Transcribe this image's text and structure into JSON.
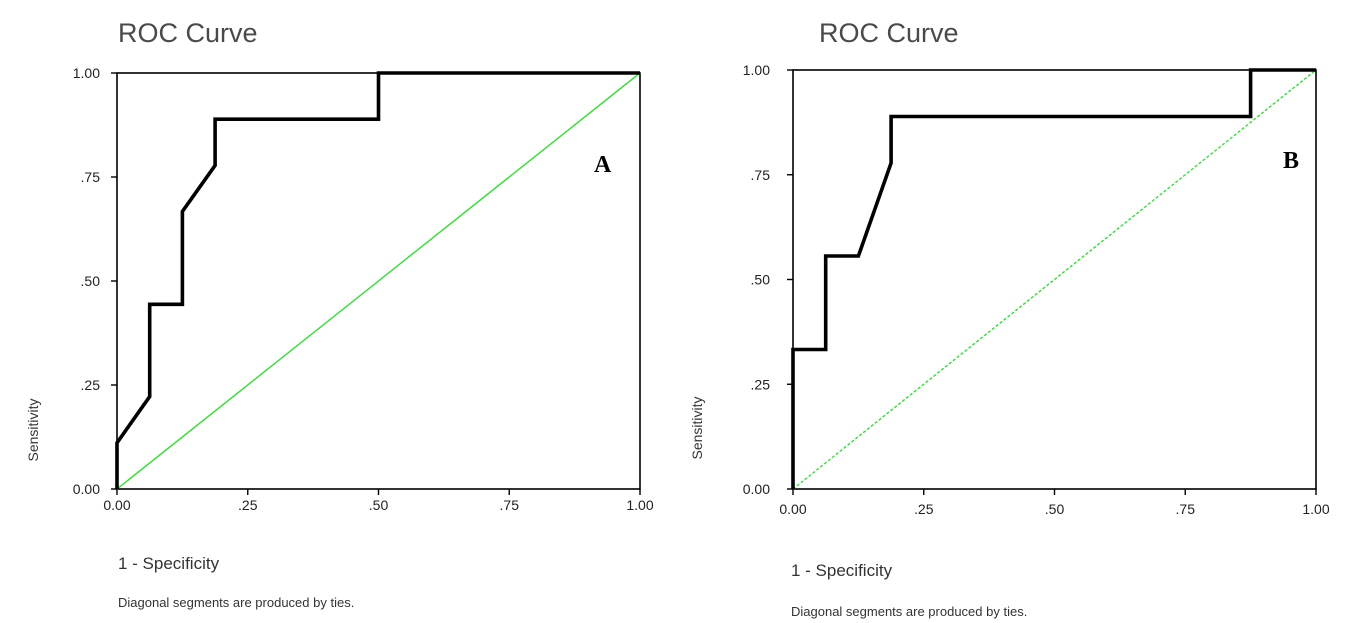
{
  "charts": [
    {
      "panel": "A",
      "title": "ROC Curve",
      "xlabel": "1 - Specificity",
      "ylabel": "Sensitivity",
      "note": "Diagonal segments are produced by ties.",
      "x_ticks": [
        "0.00",
        ".25",
        ".50",
        ".75",
        "1.00"
      ],
      "y_ticks": [
        "0.00",
        ".25",
        ".50",
        ".75",
        "1.00"
      ],
      "diagonal_style": "solid"
    },
    {
      "panel": "B",
      "title": "ROC Curve",
      "xlabel": "1 - Specificity",
      "ylabel": "Sensitivity",
      "note": "Diagonal segments are produced by ties.",
      "x_ticks": [
        "0.00",
        ".25",
        ".50",
        ".75",
        "1.00"
      ],
      "y_ticks": [
        "0.00",
        ".25",
        ".50",
        ".75",
        "1.00"
      ],
      "diagonal_style": "dashed"
    }
  ],
  "colors": {
    "roc_line": "#000000",
    "reference_line": "#33dd33",
    "axis": "#000000"
  },
  "chart_data": [
    {
      "type": "line",
      "panel": "A",
      "title": "ROC Curve",
      "xlabel": "1 - Specificity",
      "ylabel": "Sensitivity",
      "xlim": [
        0,
        1
      ],
      "ylim": [
        0,
        1
      ],
      "grid": false,
      "series": [
        {
          "points": [
            [
              0,
              0
            ],
            [
              0,
              0.111
            ],
            [
              0.0625,
              0.222
            ],
            [
              0.0625,
              0.444
            ],
            [
              0.125,
              0.444
            ],
            [
              0.125,
              0.667
            ],
            [
              0.1875,
              0.778
            ],
            [
              0.1875,
              0.889
            ],
            [
              0.5,
              0.889
            ],
            [
              0.5,
              1.0
            ],
            [
              1.0,
              1.0
            ]
          ]
        },
        {
          "points": [
            [
              0,
              0
            ],
            [
              1,
              1
            ]
          ]
        }
      ]
    },
    {
      "type": "line",
      "panel": "B",
      "title": "ROC Curve",
      "xlabel": "1 - Specificity",
      "ylabel": "Sensitivity",
      "xlim": [
        0,
        1
      ],
      "ylim": [
        0,
        1
      ],
      "grid": false,
      "series": [
        {
          "points": [
            [
              0,
              0
            ],
            [
              0,
              0.333
            ],
            [
              0.0625,
              0.333
            ],
            [
              0.0625,
              0.556
            ],
            [
              0.125,
              0.556
            ],
            [
              0.1875,
              0.778
            ],
            [
              0.1875,
              0.889
            ],
            [
              0.875,
              0.889
            ],
            [
              0.875,
              1.0
            ],
            [
              1.0,
              1.0
            ]
          ]
        },
        {
          "points": [
            [
              0,
              0
            ],
            [
              1,
              1
            ]
          ]
        }
      ]
    }
  ]
}
